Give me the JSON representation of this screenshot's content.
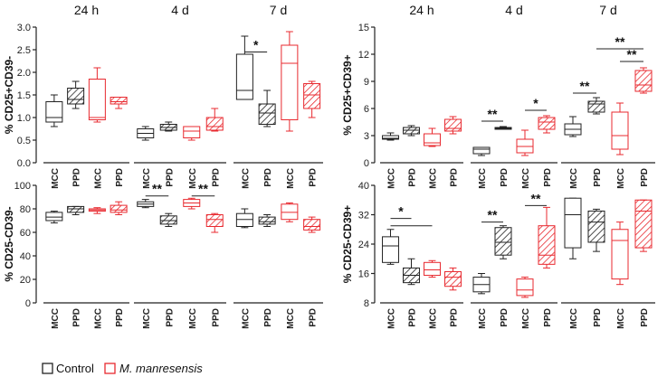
{
  "timepoints": [
    "24 h",
    "4 d",
    "7 d"
  ],
  "groups": [
    "MCC",
    "PPD",
    "MCC",
    "PPD"
  ],
  "legend": {
    "control": "Control",
    "treated": "M. manresensis"
  },
  "colors": {
    "control": "#222222",
    "treated": "#e8292f"
  },
  "chart_data": [
    {
      "type": "box",
      "id": "cd25p_cd39n",
      "ylabel": "% CD25+CD39-",
      "ylim": [
        0,
        3.0
      ],
      "yticks": [
        "0.0",
        "0.5",
        "1.0",
        "1.5",
        "2.0",
        "2.5",
        "3.0"
      ],
      "boxes": [
        [
          [
            0.8,
            0.9,
            1.0,
            1.35,
            1.5
          ],
          [
            1.2,
            1.3,
            1.4,
            1.65,
            1.8
          ],
          [
            0.9,
            0.95,
            1.0,
            1.85,
            2.1
          ],
          [
            1.2,
            1.3,
            1.35,
            1.45,
            1.45
          ]
        ],
        [
          [
            0.5,
            0.55,
            0.65,
            0.75,
            0.8
          ],
          [
            0.7,
            0.72,
            0.78,
            0.85,
            0.9
          ],
          [
            0.5,
            0.55,
            0.7,
            0.8,
            0.8
          ],
          [
            0.7,
            0.72,
            0.8,
            1.0,
            1.2
          ]
        ],
        [
          [
            1.4,
            1.4,
            1.6,
            2.4,
            2.8
          ],
          [
            0.8,
            0.85,
            1.1,
            1.3,
            1.6
          ],
          [
            0.7,
            0.95,
            2.2,
            2.6,
            2.9
          ],
          [
            1.0,
            1.2,
            1.5,
            1.75,
            1.8
          ]
        ]
      ],
      "signif": [
        {
          "tp": 2,
          "a": 0,
          "b": 1,
          "label": "*",
          "y": 2.45
        }
      ]
    },
    {
      "type": "box",
      "id": "cd25p_cd39p",
      "ylabel": "% CD25+CD39+",
      "ylim": [
        0,
        15
      ],
      "yticks": [
        "0",
        "3",
        "6",
        "9",
        "12",
        "15"
      ],
      "boxes": [
        [
          [
            2.5,
            2.6,
            2.7,
            3.0,
            3.3
          ],
          [
            3.0,
            3.2,
            3.6,
            3.9,
            4.1
          ],
          [
            1.8,
            1.9,
            2.2,
            3.2,
            3.8
          ],
          [
            3.2,
            3.5,
            3.8,
            4.8,
            5.1
          ]
        ],
        [
          [
            0.8,
            1.0,
            1.5,
            1.7,
            1.7
          ],
          [
            3.7,
            3.7,
            3.8,
            3.9,
            4.0
          ],
          [
            0.8,
            1.1,
            1.8,
            2.6,
            3.6
          ],
          [
            3.3,
            3.7,
            4.5,
            5.0,
            5.2
          ]
        ],
        [
          [
            2.9,
            3.1,
            3.7,
            4.3,
            5.1
          ],
          [
            5.4,
            5.6,
            6.5,
            6.8,
            7.2
          ],
          [
            0.9,
            1.5,
            3.0,
            5.6,
            6.6
          ],
          [
            7.7,
            7.9,
            8.6,
            10.2,
            10.5
          ]
        ]
      ],
      "signif": [
        {
          "tp": 1,
          "a": 0,
          "b": 1,
          "label": "**",
          "y": 4.6
        },
        {
          "tp": 1,
          "a": 2,
          "b": 3,
          "label": "*",
          "y": 5.8
        },
        {
          "tp": 2,
          "a": 0,
          "b": 1,
          "label": "**",
          "y": 7.7
        },
        {
          "tp": 2,
          "a": 2,
          "b": 3,
          "label": "**",
          "y": 11.2
        },
        {
          "tp": 2,
          "a": 1,
          "b": 3,
          "label": "**",
          "y": 12.6
        }
      ]
    },
    {
      "type": "box",
      "id": "cd25n_cd39n",
      "ylabel": "% CD25-CD39-",
      "ylim": [
        0,
        100
      ],
      "yticks": [
        "0",
        "20",
        "40",
        "60",
        "80",
        "100"
      ],
      "boxes": [
        [
          [
            68,
            70,
            73,
            77,
            78
          ],
          [
            75,
            77,
            80,
            82,
            82
          ],
          [
            76,
            78,
            79,
            80,
            81
          ],
          [
            75,
            77,
            79,
            83,
            86
          ]
        ],
        [
          [
            81,
            82,
            84,
            86,
            88
          ],
          [
            65,
            67,
            70,
            74,
            76
          ],
          [
            80,
            82,
            85,
            88,
            89
          ],
          [
            60,
            65,
            71,
            75,
            76
          ]
        ],
        [
          [
            64,
            65,
            71,
            76,
            80
          ],
          [
            65,
            67,
            69,
            73,
            75
          ],
          [
            69,
            71,
            77,
            84,
            85
          ],
          [
            60,
            62,
            65,
            71,
            73
          ]
        ]
      ],
      "signif": [
        {
          "tp": 1,
          "a": 0,
          "b": 1,
          "label": "**",
          "y": 91
        },
        {
          "tp": 1,
          "a": 2,
          "b": 3,
          "label": "**",
          "y": 91
        }
      ]
    },
    {
      "type": "box",
      "id": "cd25n_cd39p",
      "ylabel": "% CD25-CD39+",
      "ylim": [
        8,
        40
      ],
      "yticks": [
        "8",
        "16",
        "24",
        "32",
        "40"
      ],
      "boxes": [
        [
          [
            18.5,
            19,
            23.5,
            26,
            28
          ],
          [
            13,
            13.5,
            15.5,
            17.5,
            20
          ],
          [
            15,
            15.5,
            17,
            19,
            19.5
          ],
          [
            11.5,
            12.5,
            15,
            16.5,
            17.5
          ]
        ],
        [
          [
            10.5,
            11,
            13,
            15,
            16
          ],
          [
            20,
            21,
            24.5,
            28.5,
            29
          ],
          [
            9.5,
            10,
            11.5,
            14.5,
            15
          ],
          [
            17.5,
            18.5,
            21,
            29,
            34
          ]
        ],
        [
          [
            20,
            23,
            32,
            36.5,
            36.5
          ],
          [
            22,
            24.5,
            30,
            33,
            33.5
          ],
          [
            13,
            14.5,
            25,
            28,
            30
          ],
          [
            22,
            23,
            33,
            36,
            36
          ]
        ]
      ],
      "signif": [
        {
          "tp": 0,
          "a": 0,
          "b": 1,
          "label": "*",
          "y": 31
        },
        {
          "tp": 0,
          "a": 0,
          "b": 2,
          "label": "",
          "y": 29
        },
        {
          "tp": 1,
          "a": 0,
          "b": 1,
          "label": "**",
          "y": 30
        },
        {
          "tp": 1,
          "a": 2,
          "b": 3,
          "label": "**",
          "y": 34.5
        }
      ]
    }
  ]
}
